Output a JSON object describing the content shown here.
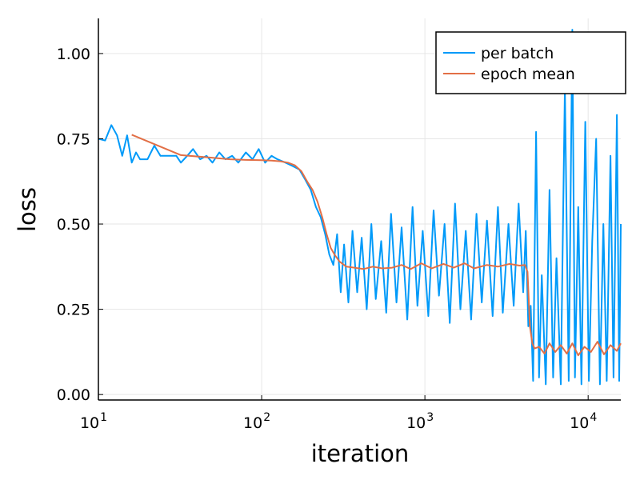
{
  "chart_data": {
    "type": "line",
    "title": "",
    "xlabel": "iteration",
    "ylabel": "loss",
    "xscale": "log",
    "xlim": [
      10,
      15850
    ],
    "ylim": [
      -0.016,
      1.103
    ],
    "grid": true,
    "legend_position": "top-right",
    "x_ticks": [
      {
        "value": 10,
        "base": "10",
        "exp": "1"
      },
      {
        "value": 100,
        "base": "10",
        "exp": "2"
      },
      {
        "value": 1000,
        "base": "10",
        "exp": "3"
      },
      {
        "value": 10000,
        "base": "10",
        "exp": "4"
      }
    ],
    "y_ticks": [
      {
        "value": 0.0,
        "label": "0.00"
      },
      {
        "value": 0.25,
        "label": "0.25"
      },
      {
        "value": 0.5,
        "label": "0.50"
      },
      {
        "value": 0.75,
        "label": "0.75"
      },
      {
        "value": 1.0,
        "label": "1.00"
      }
    ],
    "series": [
      {
        "name": "per batch",
        "color": "#009af9",
        "x": [
          10,
          11,
          12,
          13,
          14,
          15,
          16,
          17,
          18,
          20,
          22,
          24,
          27,
          30,
          32,
          35,
          38,
          42,
          46,
          50,
          55,
          60,
          66,
          72,
          80,
          88,
          96,
          105,
          115,
          125,
          140,
          155,
          170,
          185,
          200,
          215,
          230,
          245,
          260,
          275,
          290,
          305,
          320,
          340,
          360,
          385,
          410,
          440,
          470,
          500,
          540,
          580,
          620,
          670,
          720,
          780,
          840,
          900,
          970,
          1050,
          1130,
          1220,
          1320,
          1420,
          1530,
          1650,
          1780,
          1920,
          2070,
          2230,
          2400,
          2600,
          2800,
          3000,
          3250,
          3500,
          3750,
          4000,
          4150,
          4300,
          4450,
          4600,
          4800,
          5000,
          5200,
          5500,
          5800,
          6100,
          6400,
          6800,
          7200,
          7600,
          8000,
          8300,
          8700,
          9100,
          9600,
          10100,
          10600,
          11200,
          11800,
          12400,
          13000,
          13700,
          14300,
          15000,
          15500,
          15850
        ],
        "y": [
          0.75,
          0.745,
          0.79,
          0.76,
          0.7,
          0.76,
          0.68,
          0.71,
          0.69,
          0.69,
          0.73,
          0.7,
          0.7,
          0.7,
          0.68,
          0.7,
          0.72,
          0.69,
          0.7,
          0.68,
          0.71,
          0.69,
          0.7,
          0.68,
          0.71,
          0.69,
          0.72,
          0.68,
          0.7,
          0.69,
          0.68,
          0.67,
          0.66,
          0.63,
          0.6,
          0.55,
          0.52,
          0.47,
          0.41,
          0.38,
          0.47,
          0.3,
          0.44,
          0.27,
          0.48,
          0.3,
          0.46,
          0.25,
          0.5,
          0.28,
          0.45,
          0.24,
          0.53,
          0.27,
          0.49,
          0.22,
          0.55,
          0.26,
          0.48,
          0.23,
          0.54,
          0.29,
          0.5,
          0.21,
          0.56,
          0.25,
          0.48,
          0.22,
          0.53,
          0.27,
          0.51,
          0.23,
          0.55,
          0.24,
          0.5,
          0.26,
          0.56,
          0.3,
          0.48,
          0.2,
          0.26,
          0.04,
          0.77,
          0.05,
          0.35,
          0.03,
          0.6,
          0.05,
          0.4,
          0.03,
          0.9,
          0.04,
          1.07,
          0.05,
          0.55,
          0.03,
          0.8,
          0.04,
          0.45,
          0.75,
          0.03,
          0.5,
          0.04,
          0.7,
          0.05,
          0.82,
          0.04,
          0.5
        ],
        "note": "band shown downsampled as envelope"
      },
      {
        "name": "epoch mean",
        "color": "#e26f46",
        "x": [
          16,
          32,
          48,
          64,
          80,
          100,
          115,
          130,
          145,
          160,
          175,
          190,
          205,
          220,
          235,
          250,
          265,
          280,
          300,
          330,
          370,
          420,
          480,
          550,
          630,
          720,
          820,
          950,
          1100,
          1300,
          1500,
          1750,
          2000,
          2400,
          2800,
          3300,
          3800,
          4100,
          4250,
          4400,
          4550,
          4700,
          5000,
          5400,
          5800,
          6300,
          6800,
          7400,
          8000,
          8700,
          9500,
          10400,
          11400,
          12500,
          13700,
          15000,
          15850
        ],
        "y": [
          0.762,
          0.702,
          0.695,
          0.69,
          0.688,
          0.687,
          0.686,
          0.684,
          0.68,
          0.672,
          0.655,
          0.625,
          0.6,
          0.565,
          0.52,
          0.47,
          0.43,
          0.41,
          0.39,
          0.375,
          0.372,
          0.368,
          0.375,
          0.37,
          0.372,
          0.38,
          0.368,
          0.385,
          0.37,
          0.383,
          0.372,
          0.385,
          0.37,
          0.38,
          0.375,
          0.383,
          0.378,
          0.38,
          0.36,
          0.2,
          0.15,
          0.135,
          0.14,
          0.12,
          0.15,
          0.125,
          0.145,
          0.12,
          0.15,
          0.115,
          0.14,
          0.125,
          0.155,
          0.118,
          0.145,
          0.128,
          0.15
        ]
      }
    ]
  }
}
